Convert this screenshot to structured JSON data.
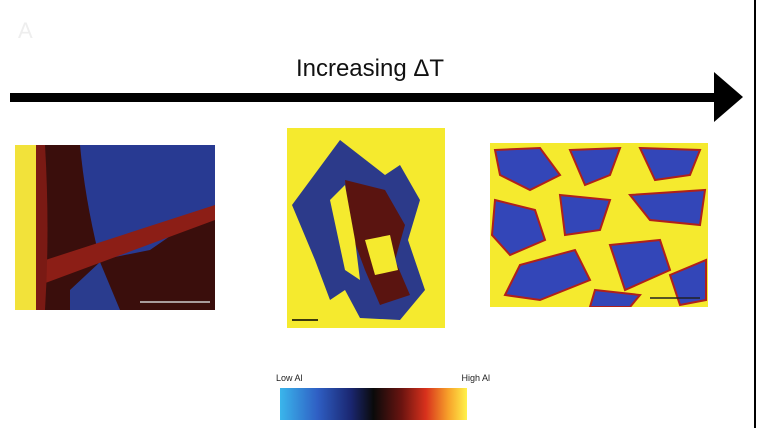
{
  "panel_label": "A",
  "arrow": {
    "label": "Increasing ΔT"
  },
  "colorbar": {
    "low_label": "Low Al",
    "high_label": "High Al"
  }
}
